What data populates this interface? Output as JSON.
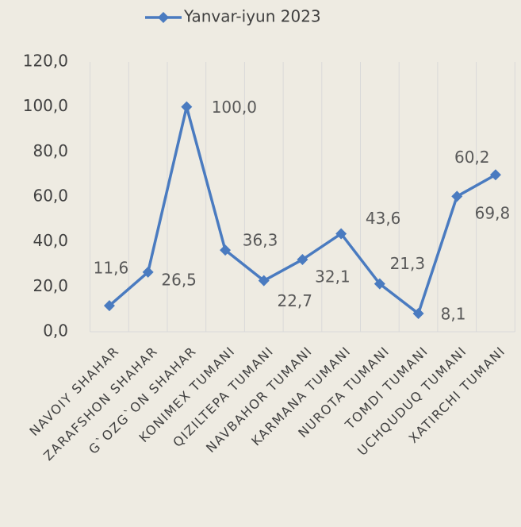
{
  "chart_data": {
    "type": "line",
    "categories": [
      "NAVOIY SHAHAR",
      "ZARAFSHON SHAHAR",
      "G`OZG`ON SHAHAR",
      "KONIMEX TUMANI",
      "QIZILTEPA TUMANI",
      "NAVBAHOR TUMANI",
      "KARMANA TUMANI",
      "NUROTA TUMANI",
      "TOMDI TUMANI",
      "UCHQUDUQ TUMANI",
      "XATIRCHI TUMANI"
    ],
    "series": [
      {
        "name": "Yanvar-iyun 2023",
        "color": "#4a7bc0",
        "values": [
          11.6,
          26.5,
          100.0,
          36.3,
          22.7,
          32.1,
          43.6,
          21.3,
          8.1,
          60.2,
          69.8
        ],
        "value_labels": [
          "11,6",
          "26,5",
          "100,0",
          "36,3",
          "22,7",
          "32,1",
          "43,6",
          "21,3",
          "8,1",
          "60,2",
          "69,8"
        ]
      }
    ],
    "ylim": [
      0,
      120
    ],
    "yticks": [
      {
        "value": 0,
        "label": "0,0"
      },
      {
        "value": 20,
        "label": "20,0"
      },
      {
        "value": 40,
        "label": "40,0"
      },
      {
        "value": 60,
        "label": "60,0"
      },
      {
        "value": 80,
        "label": "80,0"
      },
      {
        "value": 100,
        "label": "100,0"
      },
      {
        "value": 120,
        "label": "120,0"
      }
    ],
    "grid": true,
    "legend": "top"
  }
}
